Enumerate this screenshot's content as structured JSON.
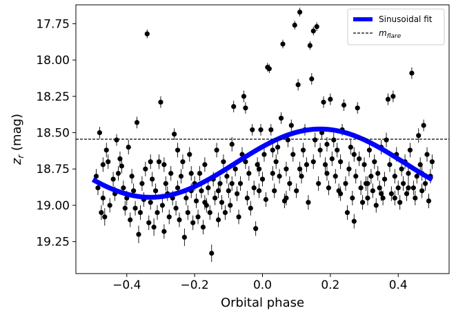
{
  "chart_data": {
    "type": "scatter",
    "xlabel": "Orbital phase",
    "ylabel_base": "z",
    "ylabel_sub": "r",
    "ylabel_unit": " (mag)",
    "xlim": [
      -0.55,
      0.55
    ],
    "ylim": [
      19.47,
      17.62
    ],
    "y_inverted": true,
    "x_ticks": [
      {
        "value": -0.4,
        "label": "−0.4"
      },
      {
        "value": -0.2,
        "label": "−0.2"
      },
      {
        "value": 0.0,
        "label": "0.0"
      },
      {
        "value": 0.2,
        "label": "0.2"
      },
      {
        "value": 0.4,
        "label": "0.4"
      }
    ],
    "y_ticks": [
      {
        "value": 17.75,
        "label": "17.75"
      },
      {
        "value": 18.0,
        "label": "18.00"
      },
      {
        "value": 18.25,
        "label": "18.25"
      },
      {
        "value": 18.5,
        "label": "18.50"
      },
      {
        "value": 18.75,
        "label": "18.75"
      },
      {
        "value": 19.0,
        "label": "19.00"
      },
      {
        "value": 19.25,
        "label": "19.25"
      }
    ],
    "grid": false,
    "legend_position": "top-right",
    "legend": {
      "fit_label": "Sinusoidal fit",
      "flare_label_base": "m",
      "flare_label_sub": "flare"
    },
    "flare_level": 18.545,
    "fit": {
      "color": "#0000ff",
      "mean": 18.71,
      "amplitude": 0.235,
      "peak_phase": 0.17,
      "x_range": [
        -0.5,
        0.5
      ]
    },
    "colors": {
      "points": "#000000",
      "fit": "#0000ff",
      "flare_line": "#000000"
    },
    "points": [
      {
        "x": -0.49,
        "y": 18.8,
        "e": 0.05
      },
      {
        "x": -0.485,
        "y": 18.88,
        "e": 0.05
      },
      {
        "x": -0.48,
        "y": 18.5,
        "e": 0.04
      },
      {
        "x": -0.475,
        "y": 19.05,
        "e": 0.05
      },
      {
        "x": -0.47,
        "y": 18.95,
        "e": 0.05
      },
      {
        "x": -0.465,
        "y": 19.08,
        "e": 0.06
      },
      {
        "x": -0.46,
        "y": 18.62,
        "e": 0.05
      },
      {
        "x": -0.455,
        "y": 18.7,
        "e": 0.05
      },
      {
        "x": -0.45,
        "y": 19.0,
        "e": 0.05
      },
      {
        "x": -0.44,
        "y": 18.82,
        "e": 0.05
      },
      {
        "x": -0.435,
        "y": 18.92,
        "e": 0.05
      },
      {
        "x": -0.43,
        "y": 18.55,
        "e": 0.04
      },
      {
        "x": -0.425,
        "y": 18.78,
        "e": 0.05
      },
      {
        "x": -0.42,
        "y": 18.68,
        "e": 0.05
      },
      {
        "x": -0.41,
        "y": 18.88,
        "e": 0.05
      },
      {
        "x": -0.405,
        "y": 19.02,
        "e": 0.05
      },
      {
        "x": -0.4,
        "y": 18.95,
        "e": 0.05
      },
      {
        "x": -0.395,
        "y": 18.6,
        "e": 0.05
      },
      {
        "x": -0.39,
        "y": 19.1,
        "e": 0.05
      },
      {
        "x": -0.385,
        "y": 18.8,
        "e": 0.05
      },
      {
        "x": -0.38,
        "y": 18.9,
        "e": 0.05
      },
      {
        "x": -0.37,
        "y": 18.43,
        "e": 0.04
      },
      {
        "x": -0.365,
        "y": 19.2,
        "e": 0.06
      },
      {
        "x": -0.36,
        "y": 19.05,
        "e": 0.05
      },
      {
        "x": -0.355,
        "y": 18.85,
        "e": 0.05
      },
      {
        "x": -0.35,
        "y": 18.96,
        "e": 0.05
      },
      {
        "x": -0.345,
        "y": 18.75,
        "e": 0.05
      },
      {
        "x": -0.34,
        "y": 17.82,
        "e": 0.03
      },
      {
        "x": -0.335,
        "y": 19.12,
        "e": 0.05
      },
      {
        "x": -0.33,
        "y": 18.98,
        "e": 0.05
      },
      {
        "x": -0.325,
        "y": 18.82,
        "e": 0.05
      },
      {
        "x": -0.32,
        "y": 19.15,
        "e": 0.06
      },
      {
        "x": -0.315,
        "y": 18.9,
        "e": 0.05
      },
      {
        "x": -0.31,
        "y": 19.05,
        "e": 0.05
      },
      {
        "x": -0.305,
        "y": 18.7,
        "e": 0.05
      },
      {
        "x": -0.3,
        "y": 18.29,
        "e": 0.04
      },
      {
        "x": -0.295,
        "y": 19.0,
        "e": 0.05
      },
      {
        "x": -0.29,
        "y": 19.18,
        "e": 0.05
      },
      {
        "x": -0.285,
        "y": 18.85,
        "e": 0.05
      },
      {
        "x": -0.28,
        "y": 18.92,
        "e": 0.05
      },
      {
        "x": -0.275,
        "y": 19.08,
        "e": 0.05
      },
      {
        "x": -0.27,
        "y": 18.78,
        "e": 0.05
      },
      {
        "x": -0.265,
        "y": 18.95,
        "e": 0.05
      },
      {
        "x": -0.26,
        "y": 18.51,
        "e": 0.04
      },
      {
        "x": -0.255,
        "y": 19.02,
        "e": 0.05
      },
      {
        "x": -0.25,
        "y": 18.88,
        "e": 0.05
      },
      {
        "x": -0.245,
        "y": 19.1,
        "e": 0.05
      },
      {
        "x": -0.24,
        "y": 18.8,
        "e": 0.05
      },
      {
        "x": -0.235,
        "y": 18.7,
        "e": 0.05
      },
      {
        "x": -0.23,
        "y": 19.22,
        "e": 0.06
      },
      {
        "x": -0.225,
        "y": 18.95,
        "e": 0.05
      },
      {
        "x": -0.22,
        "y": 19.05,
        "e": 0.05
      },
      {
        "x": -0.215,
        "y": 18.65,
        "e": 0.05
      },
      {
        "x": -0.21,
        "y": 18.9,
        "e": 0.05
      },
      {
        "x": -0.205,
        "y": 19.12,
        "e": 0.05
      },
      {
        "x": -0.2,
        "y": 18.85,
        "e": 0.05
      },
      {
        "x": -0.195,
        "y": 18.97,
        "e": 0.05
      },
      {
        "x": -0.19,
        "y": 19.08,
        "e": 0.05
      },
      {
        "x": -0.185,
        "y": 18.78,
        "e": 0.05
      },
      {
        "x": -0.18,
        "y": 18.9,
        "e": 0.05
      },
      {
        "x": -0.175,
        "y": 19.15,
        "e": 0.05
      },
      {
        "x": -0.17,
        "y": 18.72,
        "e": 0.05
      },
      {
        "x": -0.165,
        "y": 19.0,
        "e": 0.05
      },
      {
        "x": -0.16,
        "y": 18.88,
        "e": 0.05
      },
      {
        "x": -0.155,
        "y": 19.05,
        "e": 0.05
      },
      {
        "x": -0.15,
        "y": 19.33,
        "e": 0.06
      },
      {
        "x": -0.145,
        "y": 18.82,
        "e": 0.05
      },
      {
        "x": -0.14,
        "y": 18.95,
        "e": 0.05
      },
      {
        "x": -0.135,
        "y": 18.62,
        "e": 0.05
      },
      {
        "x": -0.13,
        "y": 19.1,
        "e": 0.05
      },
      {
        "x": -0.125,
        "y": 18.85,
        "e": 0.05
      },
      {
        "x": -0.12,
        "y": 18.98,
        "e": 0.05
      },
      {
        "x": -0.115,
        "y": 18.7,
        "e": 0.05
      },
      {
        "x": -0.11,
        "y": 19.05,
        "e": 0.05
      },
      {
        "x": -0.105,
        "y": 18.8,
        "e": 0.05
      },
      {
        "x": -0.1,
        "y": 18.9,
        "e": 0.05
      },
      {
        "x": -0.095,
        "y": 19.0,
        "e": 0.05
      },
      {
        "x": -0.09,
        "y": 18.58,
        "e": 0.05
      },
      {
        "x": -0.085,
        "y": 18.32,
        "e": 0.04
      },
      {
        "x": -0.08,
        "y": 18.75,
        "e": 0.05
      },
      {
        "x": -0.075,
        "y": 18.92,
        "e": 0.05
      },
      {
        "x": -0.07,
        "y": 19.08,
        "e": 0.05
      },
      {
        "x": -0.065,
        "y": 18.85,
        "e": 0.05
      },
      {
        "x": -0.06,
        "y": 18.65,
        "e": 0.05
      },
      {
        "x": -0.055,
        "y": 18.25,
        "e": 0.04
      },
      {
        "x": -0.05,
        "y": 18.33,
        "e": 0.04
      },
      {
        "x": -0.045,
        "y": 18.95,
        "e": 0.05
      },
      {
        "x": -0.04,
        "y": 18.78,
        "e": 0.05
      },
      {
        "x": -0.035,
        "y": 19.02,
        "e": 0.05
      },
      {
        "x": -0.03,
        "y": 18.48,
        "e": 0.04
      },
      {
        "x": -0.025,
        "y": 18.88,
        "e": 0.05
      },
      {
        "x": -0.02,
        "y": 19.16,
        "e": 0.05
      },
      {
        "x": -0.015,
        "y": 18.72,
        "e": 0.05
      },
      {
        "x": -0.01,
        "y": 18.9,
        "e": 0.05
      },
      {
        "x": -0.005,
        "y": 18.48,
        "e": 0.04
      },
      {
        "x": 0.0,
        "y": 18.82,
        "e": 0.05
      },
      {
        "x": 0.005,
        "y": 18.65,
        "e": 0.05
      },
      {
        "x": 0.01,
        "y": 18.96,
        "e": 0.05
      },
      {
        "x": 0.015,
        "y": 18.05,
        "e": 0.03
      },
      {
        "x": 0.02,
        "y": 18.06,
        "e": 0.03
      },
      {
        "x": 0.025,
        "y": 18.48,
        "e": 0.04
      },
      {
        "x": 0.03,
        "y": 18.78,
        "e": 0.05
      },
      {
        "x": 0.035,
        "y": 18.9,
        "e": 0.05
      },
      {
        "x": 0.04,
        "y": 18.7,
        "e": 0.05
      },
      {
        "x": 0.045,
        "y": 18.6,
        "e": 0.05
      },
      {
        "x": 0.05,
        "y": 18.8,
        "e": 0.05
      },
      {
        "x": 0.055,
        "y": 18.4,
        "e": 0.04
      },
      {
        "x": 0.06,
        "y": 17.89,
        "e": 0.03
      },
      {
        "x": 0.065,
        "y": 18.97,
        "e": 0.05
      },
      {
        "x": 0.07,
        "y": 18.75,
        "e": 0.05
      },
      {
        "x": 0.075,
        "y": 18.55,
        "e": 0.05
      },
      {
        "x": 0.08,
        "y": 18.85,
        "e": 0.05
      },
      {
        "x": 0.085,
        "y": 18.45,
        "e": 0.04
      },
      {
        "x": 0.09,
        "y": 18.65,
        "e": 0.05
      },
      {
        "x": 0.095,
        "y": 17.76,
        "e": 0.03
      },
      {
        "x": 0.1,
        "y": 18.9,
        "e": 0.05
      },
      {
        "x": 0.105,
        "y": 18.17,
        "e": 0.04
      },
      {
        "x": 0.11,
        "y": 17.67,
        "e": 0.03
      },
      {
        "x": 0.115,
        "y": 18.8,
        "e": 0.05
      },
      {
        "x": 0.12,
        "y": 18.62,
        "e": 0.05
      },
      {
        "x": 0.125,
        "y": 18.48,
        "e": 0.04
      },
      {
        "x": 0.13,
        "y": 18.72,
        "e": 0.05
      },
      {
        "x": 0.135,
        "y": 18.98,
        "e": 0.05
      },
      {
        "x": 0.14,
        "y": 17.9,
        "e": 0.03
      },
      {
        "x": 0.145,
        "y": 18.13,
        "e": 0.04
      },
      {
        "x": 0.15,
        "y": 17.8,
        "e": 0.03
      },
      {
        "x": 0.155,
        "y": 18.55,
        "e": 0.05
      },
      {
        "x": 0.16,
        "y": 17.77,
        "e": 0.03
      },
      {
        "x": 0.165,
        "y": 18.85,
        "e": 0.05
      },
      {
        "x": 0.17,
        "y": 18.62,
        "e": 0.05
      },
      {
        "x": 0.175,
        "y": 18.5,
        "e": 0.04
      },
      {
        "x": 0.18,
        "y": 18.29,
        "e": 0.04
      },
      {
        "x": 0.185,
        "y": 18.72,
        "e": 0.05
      },
      {
        "x": 0.19,
        "y": 18.58,
        "e": 0.05
      },
      {
        "x": 0.195,
        "y": 18.88,
        "e": 0.05
      },
      {
        "x": 0.2,
        "y": 18.27,
        "e": 0.04
      },
      {
        "x": 0.205,
        "y": 18.68,
        "e": 0.05
      },
      {
        "x": 0.21,
        "y": 18.55,
        "e": 0.05
      },
      {
        "x": 0.215,
        "y": 18.8,
        "e": 0.05
      },
      {
        "x": 0.22,
        "y": 18.62,
        "e": 0.05
      },
      {
        "x": 0.225,
        "y": 18.9,
        "e": 0.05
      },
      {
        "x": 0.23,
        "y": 18.7,
        "e": 0.05
      },
      {
        "x": 0.235,
        "y": 18.48,
        "e": 0.04
      },
      {
        "x": 0.24,
        "y": 18.31,
        "e": 0.04
      },
      {
        "x": 0.245,
        "y": 18.85,
        "e": 0.05
      },
      {
        "x": 0.25,
        "y": 19.05,
        "e": 0.05
      },
      {
        "x": 0.255,
        "y": 18.75,
        "e": 0.05
      },
      {
        "x": 0.26,
        "y": 18.6,
        "e": 0.05
      },
      {
        "x": 0.265,
        "y": 18.95,
        "e": 0.05
      },
      {
        "x": 0.27,
        "y": 19.11,
        "e": 0.05
      },
      {
        "x": 0.275,
        "y": 18.8,
        "e": 0.05
      },
      {
        "x": 0.28,
        "y": 18.33,
        "e": 0.04
      },
      {
        "x": 0.285,
        "y": 18.68,
        "e": 0.05
      },
      {
        "x": 0.29,
        "y": 18.88,
        "e": 0.05
      },
      {
        "x": 0.295,
        "y": 18.98,
        "e": 0.05
      },
      {
        "x": 0.3,
        "y": 18.72,
        "e": 0.05
      },
      {
        "x": 0.305,
        "y": 18.85,
        "e": 0.05
      },
      {
        "x": 0.31,
        "y": 18.95,
        "e": 0.05
      },
      {
        "x": 0.315,
        "y": 18.62,
        "e": 0.05
      },
      {
        "x": 0.32,
        "y": 18.8,
        "e": 0.05
      },
      {
        "x": 0.325,
        "y": 18.9,
        "e": 0.05
      },
      {
        "x": 0.33,
        "y": 18.7,
        "e": 0.05
      },
      {
        "x": 0.335,
        "y": 19.0,
        "e": 0.05
      },
      {
        "x": 0.34,
        "y": 18.78,
        "e": 0.05
      },
      {
        "x": 0.345,
        "y": 18.88,
        "e": 0.05
      },
      {
        "x": 0.35,
        "y": 18.6,
        "e": 0.05
      },
      {
        "x": 0.355,
        "y": 18.95,
        "e": 0.05
      },
      {
        "x": 0.36,
        "y": 18.82,
        "e": 0.05
      },
      {
        "x": 0.365,
        "y": 18.55,
        "e": 0.05
      },
      {
        "x": 0.37,
        "y": 18.27,
        "e": 0.04
      },
      {
        "x": 0.375,
        "y": 18.72,
        "e": 0.05
      },
      {
        "x": 0.38,
        "y": 18.92,
        "e": 0.05
      },
      {
        "x": 0.385,
        "y": 18.25,
        "e": 0.04
      },
      {
        "x": 0.39,
        "y": 18.8,
        "e": 0.05
      },
      {
        "x": 0.395,
        "y": 18.65,
        "e": 0.05
      },
      {
        "x": 0.4,
        "y": 18.88,
        "e": 0.05
      },
      {
        "x": 0.405,
        "y": 18.98,
        "e": 0.05
      },
      {
        "x": 0.41,
        "y": 18.75,
        "e": 0.05
      },
      {
        "x": 0.415,
        "y": 18.85,
        "e": 0.05
      },
      {
        "x": 0.42,
        "y": 18.7,
        "e": 0.05
      },
      {
        "x": 0.425,
        "y": 18.92,
        "e": 0.05
      },
      {
        "x": 0.43,
        "y": 18.78,
        "e": 0.05
      },
      {
        "x": 0.435,
        "y": 18.62,
        "e": 0.05
      },
      {
        "x": 0.44,
        "y": 18.09,
        "e": 0.04
      },
      {
        "x": 0.445,
        "y": 18.88,
        "e": 0.05
      },
      {
        "x": 0.45,
        "y": 18.95,
        "e": 0.05
      },
      {
        "x": 0.455,
        "y": 18.8,
        "e": 0.05
      },
      {
        "x": 0.46,
        "y": 18.52,
        "e": 0.05
      },
      {
        "x": 0.465,
        "y": 18.72,
        "e": 0.05
      },
      {
        "x": 0.47,
        "y": 18.9,
        "e": 0.05
      },
      {
        "x": 0.475,
        "y": 18.45,
        "e": 0.04
      },
      {
        "x": 0.48,
        "y": 18.85,
        "e": 0.05
      },
      {
        "x": 0.485,
        "y": 18.65,
        "e": 0.05
      },
      {
        "x": 0.49,
        "y": 18.97,
        "e": 0.05
      },
      {
        "x": 0.495,
        "y": 18.8,
        "e": 0.05
      },
      {
        "x": 0.5,
        "y": 18.7,
        "e": 0.05
      },
      {
        "x": -0.47,
        "y": 18.72,
        "e": 0.05
      },
      {
        "x": -0.415,
        "y": 18.73,
        "e": 0.05
      },
      {
        "x": -0.375,
        "y": 19.02,
        "e": 0.05
      },
      {
        "x": -0.33,
        "y": 18.7,
        "e": 0.05
      },
      {
        "x": -0.29,
        "y": 18.72,
        "e": 0.05
      },
      {
        "x": -0.25,
        "y": 18.62,
        "e": 0.05
      },
      {
        "x": -0.21,
        "y": 18.78,
        "e": 0.05
      },
      {
        "x": -0.17,
        "y": 18.98,
        "e": 0.05
      },
      {
        "x": -0.13,
        "y": 18.9,
        "e": 0.05
      },
      {
        "x": -0.09,
        "y": 18.85,
        "e": 0.05
      },
      {
        "x": -0.05,
        "y": 18.7,
        "e": 0.05
      },
      {
        "x": -0.01,
        "y": 18.75,
        "e": 0.05
      },
      {
        "x": 0.03,
        "y": 18.62,
        "e": 0.05
      },
      {
        "x": 0.07,
        "y": 18.95,
        "e": 0.05
      },
      {
        "x": 0.11,
        "y": 18.75,
        "e": 0.05
      },
      {
        "x": 0.15,
        "y": 18.7,
        "e": 0.05
      },
      {
        "x": 0.19,
        "y": 18.78,
        "e": 0.05
      },
      {
        "x": 0.23,
        "y": 18.92,
        "e": 0.05
      },
      {
        "x": 0.27,
        "y": 18.65,
        "e": 0.05
      },
      {
        "x": 0.31,
        "y": 18.85,
        "e": 0.05
      },
      {
        "x": 0.35,
        "y": 18.92,
        "e": 0.05
      },
      {
        "x": 0.39,
        "y": 18.95,
        "e": 0.05
      },
      {
        "x": 0.43,
        "y": 18.88,
        "e": 0.05
      },
      {
        "x": 0.47,
        "y": 18.78,
        "e": 0.05
      }
    ]
  }
}
